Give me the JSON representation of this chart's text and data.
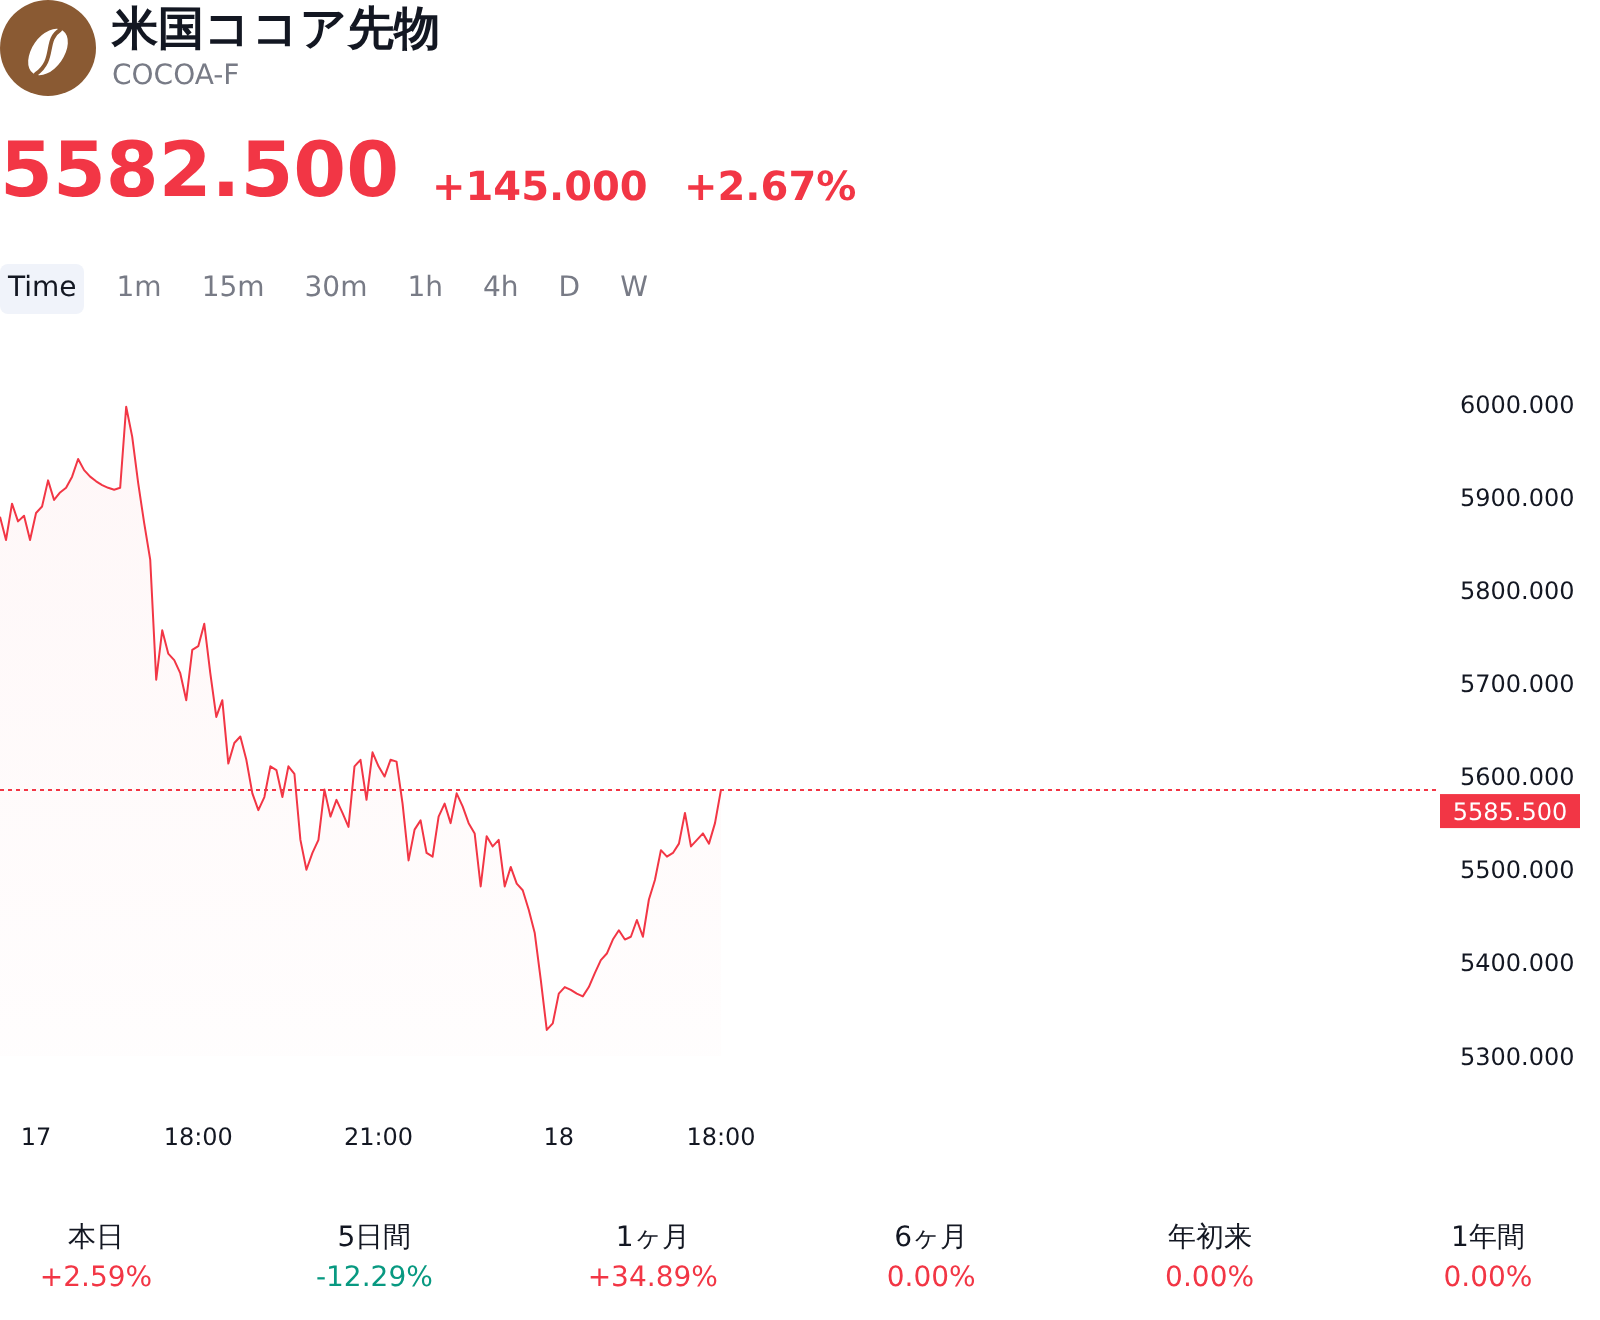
{
  "chart_data": {
    "type": "area",
    "title": "米国ココア先物",
    "subtitle": "COCOA-F",
    "annotations": [
      "5582.500",
      "+145.000",
      "+2.67%",
      "Time",
      "1m",
      "15m",
      "30m",
      "1h",
      "4h",
      "D",
      "W",
      "本日",
      "+2.59%",
      "5日間",
      "-12.29%",
      "1ヶ月",
      "+34.89%",
      "6ヶ月",
      "0.00%",
      "年初来",
      "0.00%",
      "1年間",
      "0.00%"
    ],
    "color": "#f23645",
    "categories": [
      null,
      null,
      null,
      null,
      null,
      null,
      "17",
      null,
      null,
      null,
      null,
      null,
      null,
      null,
      null,
      null,
      null,
      null,
      null,
      null,
      null,
      null,
      null,
      null,
      null,
      null,
      null,
      null,
      null,
      null,
      null,
      null,
      null,
      "18:00",
      null,
      null,
      null,
      null,
      null,
      null,
      null,
      null,
      null,
      null,
      null,
      null,
      null,
      null,
      null,
      null,
      null,
      null,
      null,
      null,
      null,
      null,
      null,
      null,
      null,
      null,
      null,
      null,
      null,
      "21:00",
      null,
      null,
      null,
      null,
      null,
      null,
      null,
      null,
      null,
      null,
      null,
      null,
      null,
      null,
      null,
      null,
      null,
      null,
      null,
      null,
      null,
      null,
      null,
      null,
      null,
      null,
      null,
      null,
      null,
      "18",
      null,
      null,
      null,
      null,
      null,
      null,
      null,
      null,
      null,
      null,
      null,
      null,
      null,
      null,
      null,
      null,
      null,
      null,
      null,
      null,
      null,
      null,
      null,
      null,
      null,
      null,
      "18:00",
      null,
      null,
      null,
      null,
      null,
      null,
      null,
      null,
      null,
      null,
      null,
      null,
      null,
      null,
      null,
      null,
      null,
      null,
      null,
      null,
      null,
      null,
      null,
      null,
      null,
      null,
      null,
      null,
      null,
      null,
      null,
      null,
      null,
      null,
      null,
      null,
      null,
      null,
      null,
      null,
      null,
      null,
      null,
      null,
      null,
      null,
      null,
      null,
      null,
      null,
      null,
      null,
      null,
      null,
      null,
      null,
      null,
      null,
      null,
      null,
      null,
      null,
      null,
      null,
      null,
      null,
      null,
      null,
      null,
      null,
      null,
      null,
      null,
      null,
      null,
      null,
      null,
      null,
      null,
      null,
      null,
      null,
      null,
      null,
      null,
      null,
      null,
      null,
      null,
      null,
      null,
      null,
      null,
      null,
      null,
      null,
      null,
      null,
      null,
      null,
      null,
      null,
      null,
      null,
      null,
      null,
      null,
      null,
      null,
      null,
      null,
      null,
      null,
      null,
      null,
      null,
      null,
      null,
      null
    ],
    "values": [
      5879,
      5854,
      5893,
      5874,
      5880,
      5854,
      5883,
      5890,
      5918,
      5897,
      5905,
      5910,
      5922,
      5941,
      5929,
      5922,
      5917,
      5913,
      5910,
      5908,
      5910,
      5997,
      5965,
      5915,
      5872,
      5833,
      5704,
      5757,
      5732,
      5725,
      5711,
      5682,
      5736,
      5740,
      5764,
      5711,
      5664,
      5682,
      5614,
      5636,
      5643,
      5618,
      5582,
      5564,
      5578,
      5611,
      5607,
      5578,
      5611,
      5603,
      5532,
      5500,
      5518,
      5532,
      5586,
      5557,
      5575,
      5561,
      5546,
      5611,
      5618,
      5575,
      5626,
      5611,
      5600,
      5618,
      5616,
      5571,
      5510,
      5543,
      5553,
      5518,
      5514,
      5557,
      5571,
      5550,
      5582,
      5568,
      5550,
      5539,
      5482,
      5536,
      5525,
      5532,
      5482,
      5503,
      5485,
      5478,
      5457,
      5432,
      5382,
      5328,
      5335,
      5367,
      5374,
      5371,
      5367,
      5364,
      5374,
      5389,
      5403,
      5410,
      5425,
      5435,
      5425,
      5428,
      5446,
      5428,
      5468,
      5489,
      5521,
      5514,
      5518,
      5528,
      5561,
      5525,
      5532,
      5539,
      5528,
      5550,
      5586,
      null,
      null,
      null,
      null,
      null,
      null,
      null,
      null,
      null,
      null,
      null,
      null,
      null,
      null,
      null,
      null,
      null,
      null,
      null,
      null,
      null,
      null,
      null,
      null,
      null,
      null,
      null,
      null,
      null,
      null,
      null,
      null,
      null,
      null,
      null,
      null,
      null,
      null,
      null,
      null,
      null,
      null,
      null,
      null,
      null,
      null,
      null,
      null,
      null,
      null,
      null,
      null,
      null,
      null,
      null,
      null,
      null,
      null,
      null,
      null,
      null,
      null,
      null,
      null,
      null,
      null,
      null,
      null,
      null,
      null,
      null,
      null,
      null,
      null,
      null,
      null,
      null,
      null,
      null,
      null,
      null,
      null,
      null,
      null,
      null,
      null,
      null,
      null,
      null,
      null,
      null,
      null,
      null,
      null,
      null,
      null,
      null,
      null,
      null,
      null,
      null,
      null,
      null,
      null,
      null,
      null,
      null,
      null,
      null,
      null,
      null,
      null,
      null,
      null,
      null,
      null,
      null,
      null,
      null
    ],
    "ylim": [
      5300,
      6000
    ],
    "yticks": [
      {
        "value": 5300,
        "label": "5300.000"
      },
      {
        "value": 5400,
        "label": "5400.000"
      },
      {
        "value": 5500,
        "label": "5500.000"
      },
      {
        "value": 5600,
        "label": "5600.000"
      },
      {
        "value": 5700,
        "label": "5700.000"
      },
      {
        "value": 5800,
        "label": "5800.000"
      },
      {
        "value": 5900,
        "label": "5900.000"
      },
      {
        "value": 6000,
        "label": "6000.000"
      }
    ],
    "ref_lines": [
      {
        "axis": "y",
        "value": 5585.5,
        "label": "5585.500",
        "color": "#f23645",
        "line_style": "dotted"
      }
    ],
    "grid": false,
    "legend": false
  }
}
